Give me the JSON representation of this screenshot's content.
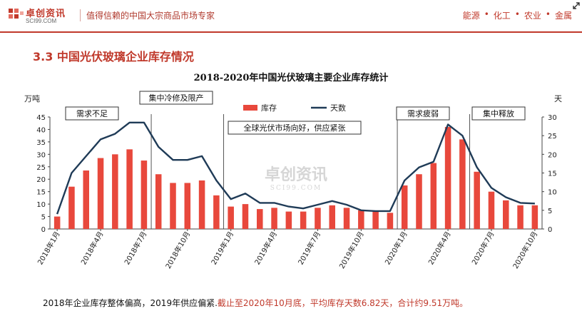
{
  "header": {
    "logo_cn": "卓创资讯",
    "logo_en": "SCI99.COM",
    "slogan": "值得信赖的中国大宗商品市场专家",
    "nav": [
      "能源",
      "化工",
      "农业",
      "金属"
    ]
  },
  "section_title": "3.3 中国光伏玻璃企业库存情况",
  "chart_data": {
    "type": "bar+line",
    "title": "2018-2020年中国光伏玻璃主要企业库存统计",
    "y_left_label": "万吨",
    "y_right_label": "天",
    "y_left_lim": [
      0,
      45
    ],
    "y_left_ticks": [
      0,
      5,
      10,
      15,
      20,
      25,
      30,
      35,
      40,
      45
    ],
    "y_right_lim": [
      0,
      30
    ],
    "y_right_ticks": [
      0,
      5,
      10,
      15,
      20,
      25,
      30
    ],
    "x": [
      "2018年1月",
      "2018年2月",
      "2018年3月",
      "2018年4月",
      "2018年5月",
      "2018年6月",
      "2018年7月",
      "2018年8月",
      "2018年9月",
      "2018年10月",
      "2018年11月",
      "2018年12月",
      "2019年1月",
      "2019年2月",
      "2019年3月",
      "2019年4月",
      "2019年5月",
      "2019年6月",
      "2019年7月",
      "2019年8月",
      "2019年9月",
      "2019年10月",
      "2019年11月",
      "2019年12月",
      "2020年1月",
      "2020年2月",
      "2020年3月",
      "2020年4月",
      "2020年5月",
      "2020年6月",
      "2020年7月",
      "2020年8月",
      "2020年9月",
      "2020年10月"
    ],
    "x_tick_labels": [
      "2018年1月",
      "2018年4月",
      "2018年7月",
      "2018年10月",
      "2019年1月",
      "2019年4月",
      "2019年7月",
      "2019年10月",
      "2020年1月",
      "2020年4月",
      "2020年7月",
      "2020年10月"
    ],
    "x_tick_indices": [
      0,
      3,
      6,
      9,
      12,
      15,
      18,
      21,
      24,
      27,
      30,
      33
    ],
    "series": [
      {
        "name": "库存",
        "kind": "bar",
        "axis": "left",
        "color": "#e8483c",
        "values": [
          5,
          17,
          23.5,
          28.5,
          30,
          32,
          27.5,
          22,
          18.5,
          18.5,
          19.5,
          13.5,
          9,
          10,
          8,
          8.5,
          7,
          7,
          8.5,
          9.5,
          8.5,
          7.5,
          7,
          6.5,
          17.5,
          22,
          26.5,
          41,
          36,
          23,
          15,
          11.5,
          9.5,
          9.51
        ]
      },
      {
        "name": "天数",
        "kind": "line",
        "axis": "right",
        "color": "#1f3b57",
        "values": [
          4,
          15,
          19.5,
          24,
          25.5,
          28.5,
          28.5,
          22,
          18.5,
          18.5,
          19.5,
          13,
          8,
          9.5,
          7,
          7,
          6,
          5.5,
          6.5,
          7.5,
          6.5,
          5,
          4.8,
          4.8,
          13,
          16.5,
          18,
          28,
          25,
          16.5,
          11,
          8.5,
          7,
          6.82
        ]
      }
    ],
    "phase_dividers": [
      6.5,
      11.5,
      23.5,
      28.5
    ],
    "annotations": [
      {
        "text": "需求不足",
        "boxed": true
      },
      {
        "text": "集中冷修及限产",
        "boxed": true
      },
      {
        "text": "全球光伏市场向好，供应紧张",
        "boxed": true
      },
      {
        "text": "需求疲弱",
        "boxed": true
      },
      {
        "text": "集中释放",
        "boxed": true
      }
    ],
    "legend_position": "top-center",
    "watermark_cn": "卓创资讯",
    "watermark_en": "SCI99.COM"
  },
  "note": {
    "black": "2018年企业库存整体偏高，2019年供应偏紧.",
    "red": "截止至2020年10月底，平均库存天数6.82天，合计约9.51万吨。"
  },
  "colors": {
    "accent": "#c0392b",
    "bar": "#e8483c",
    "line": "#1f3b57"
  }
}
